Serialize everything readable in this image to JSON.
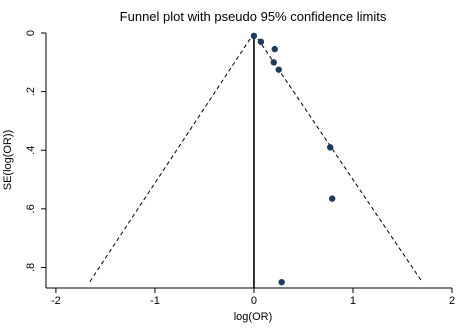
{
  "chart_data": {
    "type": "scatter",
    "title": "Funnel plot with pseudo 95% confidence limits",
    "xlabel": "log(OR)",
    "ylabel": "SE(log(OR))",
    "x_ticks": [
      {
        "value": -2,
        "label": "-2"
      },
      {
        "value": -1,
        "label": "-1"
      },
      {
        "value": 0,
        "label": "0"
      },
      {
        "value": 1,
        "label": "1"
      },
      {
        "value": 2,
        "label": "2"
      }
    ],
    "y_ticks": [
      {
        "value": 0,
        "label": "0"
      },
      {
        "value": 0.2,
        "label": ".2"
      },
      {
        "value": 0.4,
        "label": ".4"
      },
      {
        "value": 0.6,
        "label": ".6"
      },
      {
        "value": 0.8,
        "label": ".8"
      }
    ],
    "xlim": [
      -2.1,
      2.0
    ],
    "ylim": [
      0,
      0.87
    ],
    "y_reversed": true,
    "grid": false,
    "reference_line_x": 0,
    "pseudo_ci_limits": [
      {
        "x": [
          0,
          -1.66
        ],
        "y": [
          0,
          0.85
        ]
      },
      {
        "x": [
          0,
          1.7
        ],
        "y": [
          0,
          0.85
        ]
      }
    ],
    "points": [
      {
        "x": 0.0,
        "y": 0.01
      },
      {
        "x": 0.07,
        "y": 0.03
      },
      {
        "x": 0.21,
        "y": 0.055
      },
      {
        "x": 0.2,
        "y": 0.1
      },
      {
        "x": 0.25,
        "y": 0.125
      },
      {
        "x": 0.77,
        "y": 0.39
      },
      {
        "x": 0.79,
        "y": 0.565
      },
      {
        "x": 0.28,
        "y": 0.85
      }
    ],
    "point_color": "#1f3a5a"
  }
}
